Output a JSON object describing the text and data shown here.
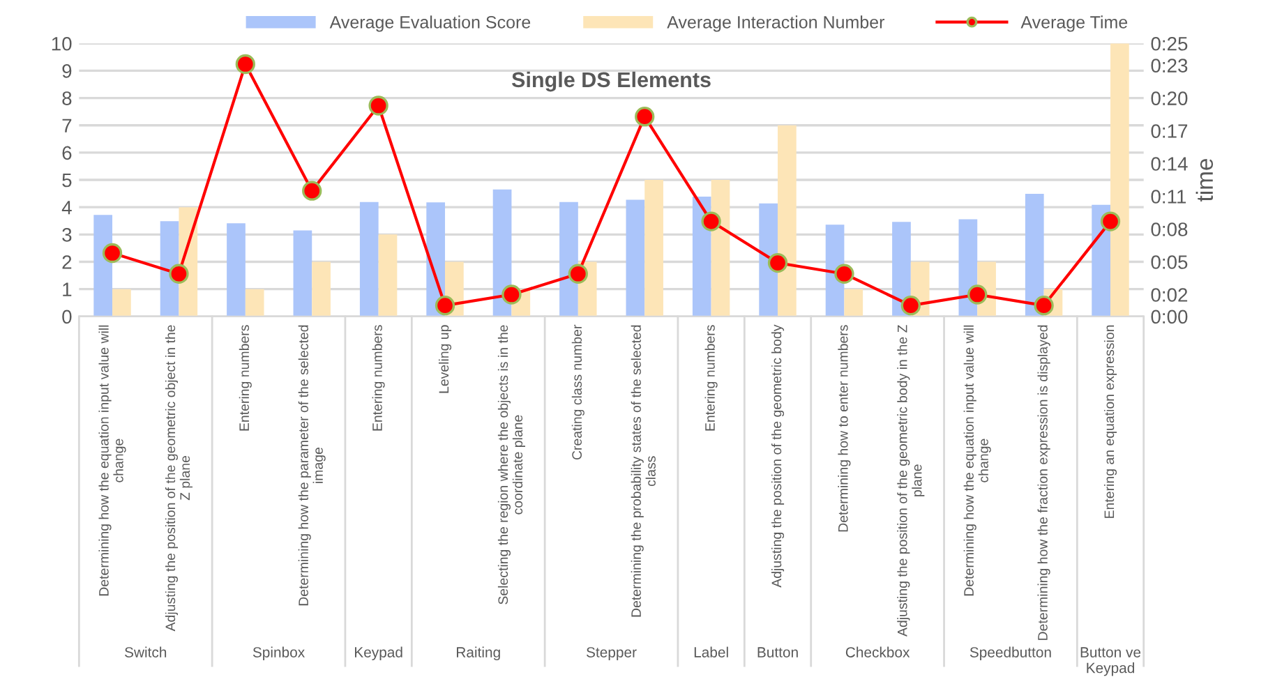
{
  "chart_data": {
    "type": "bar",
    "title": "Single DS Elements",
    "y2label": "time",
    "categories": [
      "Determining how the equation input value will\nchange",
      "Adjusting the position of the geometric object in the\nZ plane",
      "Entering numbers",
      "Determining how the parameter of the selected\nimage",
      "Entering numbers",
      "Leveling up",
      "Selecting the region where the objects is in the\ncoordinate plane",
      "Creating class number",
      "Determining the probability states of the selected\nclass",
      "Entering numbers",
      "Adjusting the position of the geometric body",
      "Determining how to enter numbers",
      "Adjusting the position of the geometric body in the Z\nplane",
      "Determining how the equation input value will\nchange",
      "Determining how the fraction expression is displayed",
      "Entering an equation expression"
    ],
    "annotations": [
      "Switch",
      "Spinbox",
      "Keypad",
      "Raiting",
      "Stepper",
      "Label",
      "Button",
      "Checkbox",
      "Speedbutton",
      "Button ve\nKeypad"
    ],
    "series": [
      {
        "name": "Average Evaluation Score",
        "color": "#abc5fa",
        "values": [
          3.72,
          3.49,
          3.41,
          3.15,
          4.19,
          4.18,
          4.65,
          4.19,
          4.27,
          4.39,
          4.14,
          3.36,
          3.46,
          3.56,
          4.49,
          4.09
        ]
      },
      {
        "name": "Average Interaction Number",
        "color": "#fde5b7",
        "values": [
          1,
          4,
          1,
          2,
          3,
          2,
          1,
          2,
          5,
          5,
          7,
          1,
          2,
          2,
          1,
          10
        ]
      },
      {
        "name": "Average Time",
        "type": "line",
        "axis": "y2",
        "color": "#ff0000",
        "marker": "circle",
        "values": [
          5.8,
          3.9,
          23.1,
          11.5,
          19.3,
          1.0,
          2.0,
          3.9,
          18.3,
          8.7,
          4.9,
          3.9,
          1.0,
          2.0,
          1.0,
          8.7
        ]
      }
    ],
    "ylim": [
      0,
      10
    ],
    "yticks": [
      0,
      1,
      2,
      3,
      4,
      5,
      6,
      7,
      8,
      9,
      10
    ],
    "y2lim": [
      0,
      25
    ],
    "y2ticks": [
      {
        "value": 0,
        "label": "0:00"
      },
      {
        "value": 2,
        "label": "0:02"
      },
      {
        "value": 5,
        "label": "0:05"
      },
      {
        "value": 8,
        "label": "0:08"
      },
      {
        "value": 11,
        "label": "0:11"
      },
      {
        "value": 14,
        "label": "0:14"
      },
      {
        "value": 17,
        "label": "0:17"
      },
      {
        "value": 20,
        "label": "0:20"
      },
      {
        "value": 23,
        "label": "0:23"
      },
      {
        "value": 25,
        "label": "0:25"
      }
    ],
    "grid": "y",
    "legend": "top right"
  }
}
